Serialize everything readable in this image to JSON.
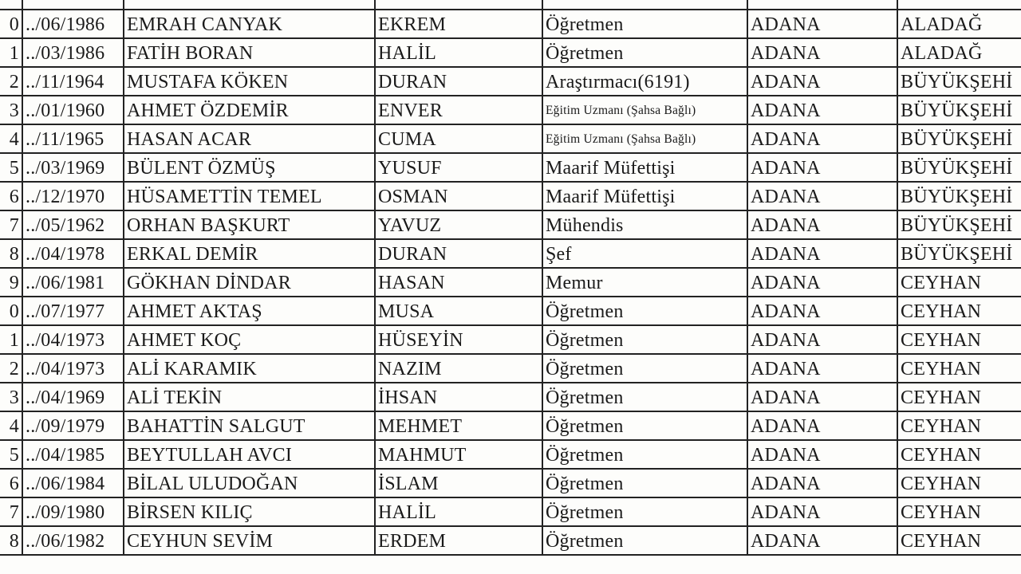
{
  "table": {
    "rows": [
      [
        "0",
        "../06/1986",
        "EMRAH CANYAK",
        "EKREM",
        "Öğretmen",
        "ADANA",
        "ALADAĞ"
      ],
      [
        "1",
        "../03/1986",
        "FATİH BORAN",
        "HALİL",
        "Öğretmen",
        "ADANA",
        "ALADAĞ"
      ],
      [
        "2",
        "../11/1964",
        "MUSTAFA KÖKEN",
        "DURAN",
        "Araştırmacı(6191)",
        "ADANA",
        "BÜYÜKŞEHİ"
      ],
      [
        "3",
        "../01/1960",
        "AHMET ÖZDEMİR",
        "ENVER",
        "Eğitim Uzmanı (Şahsa Bağlı)",
        "ADANA",
        "BÜYÜKŞEHİ"
      ],
      [
        "4",
        "../11/1965",
        "HASAN ACAR",
        "CUMA",
        "Eğitim Uzmanı (Şahsa Bağlı)",
        "ADANA",
        "BÜYÜKŞEHİ"
      ],
      [
        "5",
        "../03/1969",
        "BÜLENT ÖZMÜŞ",
        "YUSUF",
        "Maarif Müfettişi",
        "ADANA",
        "BÜYÜKŞEHİ"
      ],
      [
        "6",
        "../12/1970",
        "HÜSAMETTİN TEMEL",
        "OSMAN",
        "Maarif Müfettişi",
        "ADANA",
        "BÜYÜKŞEHİ"
      ],
      [
        "7",
        "../05/1962",
        "ORHAN BAŞKURT",
        "YAVUZ",
        "Mühendis",
        "ADANA",
        "BÜYÜKŞEHİ"
      ],
      [
        "8",
        "../04/1978",
        "ERKAL DEMİR",
        "DURAN",
        "Şef",
        "ADANA",
        "BÜYÜKŞEHİ"
      ],
      [
        "9",
        "../06/1981",
        "GÖKHAN DİNDAR",
        "HASAN",
        "Memur",
        "ADANA",
        "CEYHAN"
      ],
      [
        "0",
        "../07/1977",
        "AHMET AKTAŞ",
        "MUSA",
        "Öğretmen",
        "ADANA",
        "CEYHAN"
      ],
      [
        "1",
        "../04/1973",
        "AHMET KOÇ",
        "HÜSEYİN",
        "Öğretmen",
        "ADANA",
        "CEYHAN"
      ],
      [
        "2",
        "../04/1973",
        "ALİ KARAMIK",
        "NAZIM",
        "Öğretmen",
        "ADANA",
        "CEYHAN"
      ],
      [
        "3",
        "../04/1969",
        "ALİ TEKİN",
        "İHSAN",
        "Öğretmen",
        "ADANA",
        "CEYHAN"
      ],
      [
        "4",
        "../09/1979",
        "BAHATTİN SALGUT",
        "MEHMET",
        "Öğretmen",
        "ADANA",
        "CEYHAN"
      ],
      [
        "5",
        "../04/1985",
        "BEYTULLAH AVCI",
        "MAHMUT",
        "Öğretmen",
        "ADANA",
        "CEYHAN"
      ],
      [
        "6",
        "../06/1984",
        "BİLAL ULUDOĞAN",
        "İSLAM",
        "Öğretmen",
        "ADANA",
        "CEYHAN"
      ],
      [
        "7",
        "../09/1980",
        "BİRSEN KILIÇ",
        "HALİL",
        "Öğretmen",
        "ADANA",
        "CEYHAN"
      ],
      [
        "8",
        "../06/1982",
        "CEYHUN SEVİM",
        "ERDEM",
        "Öğretmen",
        "ADANA",
        "CEYHAN"
      ]
    ]
  }
}
